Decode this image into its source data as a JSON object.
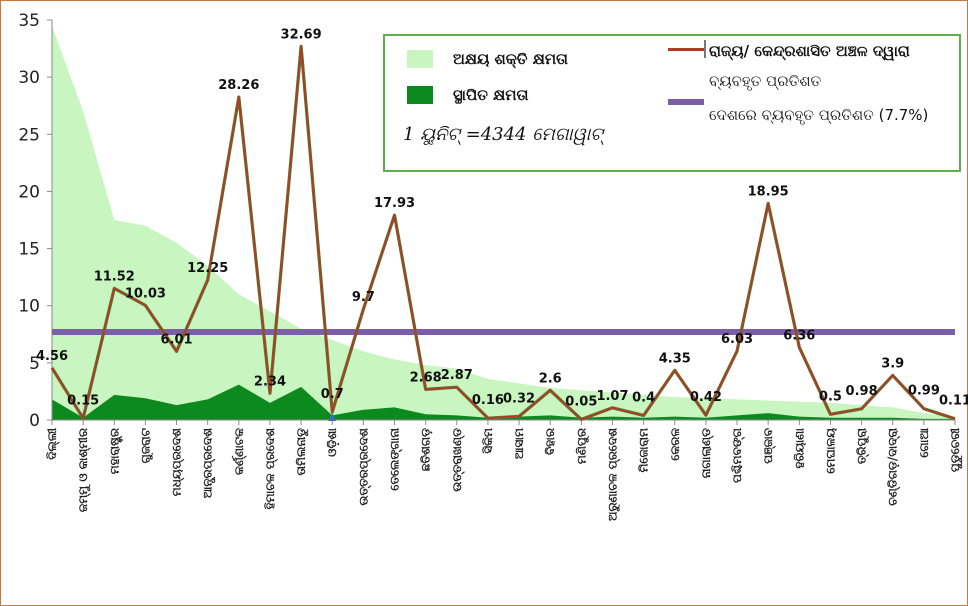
{
  "chart_data": {
    "type": "line",
    "title": "",
    "xlabel": "",
    "ylabel": "",
    "ylim": [
      0,
      35
    ],
    "yticks": [
      0,
      5,
      10,
      15,
      20,
      25,
      30,
      35
    ],
    "grid": false,
    "legend_position": "top-right",
    "categories": [
      "ଦିଲ୍ଲୀ",
      "ଜମ୍ମୁ ଓ କାଶ୍ମୀର",
      "ମହାରାଷ୍ଟ୍ର",
      "ଗୁଜରାଟ",
      "ମଧ୍ୟପ୍ରଦେଶ",
      "ଆନ୍ଧ୍ରପ୍ରଦେଶ",
      "କର୍ଣ୍ଣାଟକ",
      "ହିମାଚଳ ପ୍ରଦେଶ",
      "ତାମିଲନାଡୁ",
      "ଓଡ଼ିଶା",
      "ଉତ୍ତରପ୍ରଦେଶ",
      "ତେଲେଙ୍ଗାନା",
      "ଛତିଶଗଡ଼",
      "ଉତ୍ତରାଖଣ୍ଡ",
      "ସିକିମ",
      "ଆସାମ",
      "ବିହାର",
      "ମଣିପୁର",
      "ଅରୁଣାଚଳ ପ୍ରଦେଶ",
      "ମିଜୋରାମ",
      "କେରଳ",
      "ନାଗାଲାଣ୍ଡ",
      "ପଶ୍ଚିମବଙ୍ଗ",
      "ପଞ୍ଜାବ",
      "ହରିୟାଣା",
      "ମେଘାଳୟ",
      "ତ୍ରିପୁରା",
      "ଚଣ୍ଡିଗଡ଼/ଦାଦ୍ରା",
      "ଗୋଆ",
      "ପୁଡୁଚେରୀ"
    ],
    "series": [
      {
        "name": "ଅକ୍ଷୟ ଶକ୍ତି କ୍ଷମତା",
        "kind": "area",
        "color": "#c8f5c0",
        "values": [
          34.5,
          27,
          17.5,
          17,
          15.5,
          13.5,
          11,
          9.5,
          8,
          7,
          6,
          5.3,
          4.8,
          4.5,
          3.6,
          3.2,
          2.8,
          2.6,
          2.4,
          2.2,
          2,
          1.9,
          1.8,
          1.7,
          1.6,
          1.5,
          1.3,
          1.1,
          0.6,
          0.3
        ]
      },
      {
        "name": "ସ୍ଥାପିତ କ୍ଷମତା",
        "kind": "area",
        "color": "#0c8a1e",
        "values": [
          1.8,
          0.2,
          2.2,
          1.9,
          1.3,
          1.8,
          3.1,
          1.5,
          2.9,
          0.4,
          0.9,
          1.1,
          0.5,
          0.4,
          0.2,
          0.3,
          0.4,
          0.2,
          0.3,
          0.2,
          0.3,
          0.2,
          0.4,
          0.6,
          0.3,
          0.2,
          0.2,
          0.2,
          0.1,
          0.1
        ]
      },
      {
        "name": "ରାଜ୍ୟ/ କେନ୍ଦ୍ରଶାସିତ ଅଞ୍ଚଳ ଦ୍ୱାରା ବ୍ୟବହୃତ ପ୍ରତିଶତ",
        "kind": "line",
        "color": "#b33a2a",
        "values": [
          4.56,
          0.15,
          11.52,
          10.03,
          6.01,
          12.25,
          28.26,
          2.34,
          32.69,
          0.7,
          9.7,
          17.93,
          2.68,
          2.87,
          0.16,
          0.32,
          2.6,
          0.05,
          1.07,
          0.4,
          4.35,
          0.42,
          6.03,
          18.95,
          6.36,
          0.5,
          0.98,
          3.9,
          0.99,
          0.11
        ],
        "labels": [
          "4.56",
          "0.15",
          "11.52",
          "10.03",
          "6.01",
          "12.25",
          "28.26",
          "2.34",
          "32.69",
          "0.7",
          "9.7",
          "17.93",
          "2.68",
          "2.87",
          "0.16",
          "0.32",
          "2.6",
          "0.05",
          "1.07",
          "0.4",
          "4.35",
          "0.42",
          "6.03",
          "18.95",
          "6.36",
          "0.5",
          "0.98",
          "3.9",
          "0.99",
          "0.11"
        ]
      },
      {
        "name": "ଦେଶରେ ବ୍ୟବହୃତ ପ୍ରତିଶତ (7.7%)",
        "kind": "hline",
        "color": "#7b5ea7",
        "value": 7.7
      }
    ]
  },
  "legend": {
    "renewable_label": "ଅକ୍ଷୟ ଶକ୍ତି କ୍ଷମତା",
    "installed_label": "ସ୍ଥାପିତ କ୍ଷମତା",
    "unit_note": "1 ୟୁନିଟ୍ =4344 ମେଗାୱାଟ୍",
    "state_line_label_1": "ରାଜ୍ୟ/ କେନ୍ଦ୍ରଶାସିତ ଅଞ୍ଚଳ ଦ୍ୱାରା",
    "state_line_label_2": "ବ୍ୟବହୃତ ପ୍ରତିଶତ",
    "national_line_label": "ଦେଶରେ ବ୍ୟବହୃତ ପ୍ରତିଶତ (7.7%)"
  }
}
